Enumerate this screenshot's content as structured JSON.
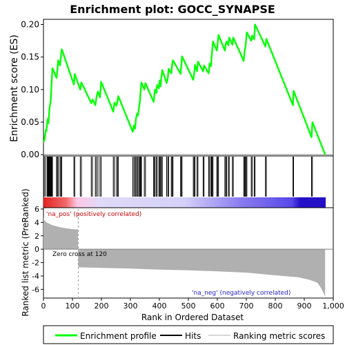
{
  "title": "Enrichment plot: GOCC_SYNAPSE",
  "colors": {
    "enrichment_line": "#00ff00",
    "hits": "#000000",
    "metric_fill": "#b0b0b0",
    "pos_label": "#cc0000",
    "neg_label": "#2222cc",
    "legend_metric_line": "#d8d8d8"
  },
  "chart_data": {
    "type": "line",
    "x_range": [
      0,
      1000
    ],
    "x_ticks": [
      "0",
      "100",
      "200",
      "300",
      "400",
      "500",
      "600",
      "700",
      "800",
      "900",
      "1,000"
    ],
    "x_label": "Rank in Ordered Dataset",
    "n_ranked": 972,
    "es_panel": {
      "y_label": "Enrichment score (ES)",
      "y_range": [
        -0.002,
        0.208
      ],
      "y_ticks": [
        "0.00",
        "0.05",
        "0.10",
        "0.15",
        "0.20"
      ],
      "series": [
        {
          "name": "Enrichment profile",
          "points": [
            [
              0,
              0.02
            ],
            [
              3,
              0.022
            ],
            [
              8,
              0.038
            ],
            [
              10,
              0.036
            ],
            [
              13,
              0.05
            ],
            [
              15,
              0.055
            ],
            [
              17,
              0.048
            ],
            [
              19,
              0.06
            ],
            [
              21,
              0.072
            ],
            [
              23,
              0.078
            ],
            [
              25,
              0.083
            ],
            [
              27,
              0.1
            ],
            [
              29,
              0.117
            ],
            [
              31,
              0.133
            ],
            [
              45,
              0.118
            ],
            [
              48,
              0.13
            ],
            [
              51,
              0.145
            ],
            [
              57,
              0.137
            ],
            [
              60,
              0.15
            ],
            [
              63,
              0.162
            ],
            [
              105,
              0.108
            ],
            [
              108,
              0.124
            ],
            [
              127,
              0.1
            ],
            [
              131,
              0.111
            ],
            [
              165,
              0.079
            ],
            [
              169,
              0.085
            ],
            [
              179,
              0.076
            ],
            [
              183,
              0.089
            ],
            [
              188,
              0.097
            ],
            [
              195,
              0.088
            ],
            [
              199,
              0.112
            ],
            [
              241,
              0.066
            ],
            [
              245,
              0.08
            ],
            [
              252,
              0.075
            ],
            [
              256,
              0.084
            ],
            [
              258,
              0.09
            ],
            [
              308,
              0.035
            ],
            [
              312,
              0.045
            ],
            [
              316,
              0.04
            ],
            [
              319,
              0.055
            ],
            [
              323,
              0.063
            ],
            [
              326,
              0.06
            ],
            [
              330,
              0.073
            ],
            [
              333,
              0.083
            ],
            [
              334,
              0.092
            ],
            [
              336,
              0.101
            ],
            [
              338,
              0.111
            ],
            [
              348,
              0.1
            ],
            [
              352,
              0.11
            ],
            [
              380,
              0.081
            ],
            [
              383,
              0.092
            ],
            [
              385,
              0.1
            ],
            [
              390,
              0.095
            ],
            [
              392,
              0.107
            ],
            [
              398,
              0.102
            ],
            [
              401,
              0.114
            ],
            [
              404,
              0.105
            ],
            [
              407,
              0.119
            ],
            [
              410,
              0.13
            ],
            [
              425,
              0.11
            ],
            [
              429,
              0.118
            ],
            [
              432,
              0.132
            ],
            [
              441,
              0.125
            ],
            [
              444,
              0.138
            ],
            [
              447,
              0.145
            ],
            [
              473,
              0.124
            ],
            [
              476,
              0.138
            ],
            [
              478,
              0.151
            ],
            [
              517,
              0.115
            ],
            [
              520,
              0.125
            ],
            [
              523,
              0.138
            ],
            [
              530,
              0.128
            ],
            [
              533,
              0.143
            ],
            [
              551,
              0.128
            ],
            [
              554,
              0.137
            ],
            [
              570,
              0.125
            ],
            [
              573,
              0.14
            ],
            [
              578,
              0.136
            ],
            [
              580,
              0.15
            ],
            [
              582,
              0.158
            ],
            [
              585,
              0.174
            ],
            [
              598,
              0.16
            ],
            [
              601,
              0.171
            ],
            [
              604,
              0.184
            ],
            [
              626,
              0.16
            ],
            [
              629,
              0.17
            ],
            [
              632,
              0.174
            ],
            [
              638,
              0.168
            ],
            [
              641,
              0.18
            ],
            [
              652,
              0.169
            ],
            [
              655,
              0.18
            ],
            [
              691,
              0.144
            ],
            [
              694,
              0.16
            ],
            [
              697,
              0.165
            ],
            [
              699,
              0.175
            ],
            [
              702,
              0.188
            ],
            [
              717,
              0.175
            ],
            [
              720,
              0.183
            ],
            [
              727,
              0.177
            ],
            [
              730,
              0.2
            ],
            [
              766,
              0.166
            ],
            [
              769,
              0.178
            ],
            [
              861,
              0.076
            ],
            [
              863,
              0.098
            ],
            [
              925,
              0.027
            ],
            [
              928,
              0.05
            ],
            [
              972,
              0.0
            ]
          ]
        }
      ]
    },
    "hits_panel": {
      "legend_name": "Hits",
      "ranks": [
        3,
        8,
        13,
        15,
        17,
        19,
        21,
        23,
        25,
        27,
        29,
        31,
        45,
        48,
        51,
        57,
        60,
        63,
        105,
        108,
        127,
        131,
        165,
        169,
        179,
        183,
        188,
        195,
        199,
        241,
        245,
        252,
        256,
        258,
        308,
        312,
        316,
        319,
        323,
        326,
        330,
        333,
        334,
        336,
        338,
        348,
        352,
        380,
        383,
        385,
        390,
        392,
        398,
        401,
        404,
        407,
        410,
        425,
        429,
        432,
        441,
        444,
        447,
        473,
        476,
        478,
        517,
        520,
        523,
        530,
        533,
        551,
        554,
        570,
        573,
        578,
        580,
        582,
        585,
        598,
        601,
        604,
        626,
        629,
        632,
        638,
        641,
        652,
        655,
        691,
        694,
        697,
        699,
        702,
        717,
        720,
        727,
        730,
        766,
        769,
        861,
        863,
        925,
        928
      ]
    },
    "metric_panel": {
      "y_label": "Ranked list metric (PreRanked)",
      "y_range": [
        -7.3,
        6.2
      ],
      "y_ticks": [
        "6",
        "4",
        "2",
        "0",
        "-2",
        "-4",
        "-6"
      ],
      "legend_name": "Ranking metric scores",
      "zero_cross_rank": 120,
      "zero_cross_label": "Zero cross at 120",
      "pos_label": "'na_pos' (positively correlated)",
      "neg_label": "'na_neg' (negatively correlated)",
      "curve": [
        [
          0,
          4.8
        ],
        [
          2,
          4.4
        ],
        [
          10,
          4.0
        ],
        [
          30,
          3.6
        ],
        [
          60,
          3.25
        ],
        [
          100,
          3.0
        ],
        [
          119,
          2.95
        ],
        [
          120,
          -2.7
        ],
        [
          200,
          -2.8
        ],
        [
          300,
          -2.9
        ],
        [
          400,
          -3.05
        ],
        [
          500,
          -3.15
        ],
        [
          600,
          -3.3
        ],
        [
          700,
          -3.5
        ],
        [
          800,
          -3.9
        ],
        [
          880,
          -4.2
        ],
        [
          920,
          -4.6
        ],
        [
          945,
          -5.0
        ],
        [
          955,
          -5.6
        ],
        [
          965,
          -6.4
        ],
        [
          972,
          -7.1
        ]
      ]
    }
  },
  "legend": {
    "items": [
      {
        "label": "Enrichment profile"
      },
      {
        "label": "Hits"
      },
      {
        "label": "Ranking metric scores"
      }
    ]
  }
}
